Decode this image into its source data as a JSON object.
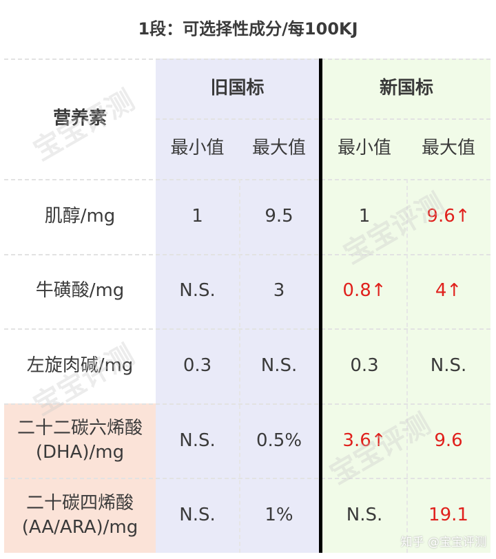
{
  "title": "1段：可选择性成分/每100KJ",
  "header": {
    "nutrient": "营养素",
    "old": "旧国标",
    "new": "新国标",
    "min": "最小值",
    "max": "最大值"
  },
  "rows": [
    {
      "name": "肌醇/mg",
      "old_min": "1",
      "old_max": "9.5",
      "new_min": "1",
      "new_max": "9.6↑",
      "new_min_red": false,
      "new_max_red": true
    },
    {
      "name": "牛磺酸/mg",
      "old_min": "N.S.",
      "old_max": "3",
      "new_min": "0.8↑",
      "new_max": "4↑",
      "new_min_red": true,
      "new_max_red": true
    },
    {
      "name": "左旋肉碱/mg",
      "old_min": "0.3",
      "old_max": "N.S.",
      "new_min": "0.3",
      "new_max": "N.S.",
      "new_min_red": false,
      "new_max_red": false
    },
    {
      "name": "二十二碳六烯酸\n(DHA)/mg",
      "old_min": "N.S.",
      "old_max": "0.5%",
      "new_min": "3.6↑",
      "new_max": "9.6",
      "new_min_red": true,
      "new_max_red": true
    },
    {
      "name": "二十碳四烯酸\n(AA/ARA)/mg",
      "old_min": "N.S.",
      "old_max": "1%",
      "new_min": "N.S.",
      "new_max": "19.1",
      "new_min_red": false,
      "new_max_red": true
    }
  ],
  "watermark": "宝宝评测",
  "credit": "知乎 @宝宝评测",
  "colors": {
    "old_bg": "#e9eaf8",
    "new_bg": "#f1fbe8",
    "highlight_bg": "#fbe3d8",
    "increase": "#e0201c"
  }
}
